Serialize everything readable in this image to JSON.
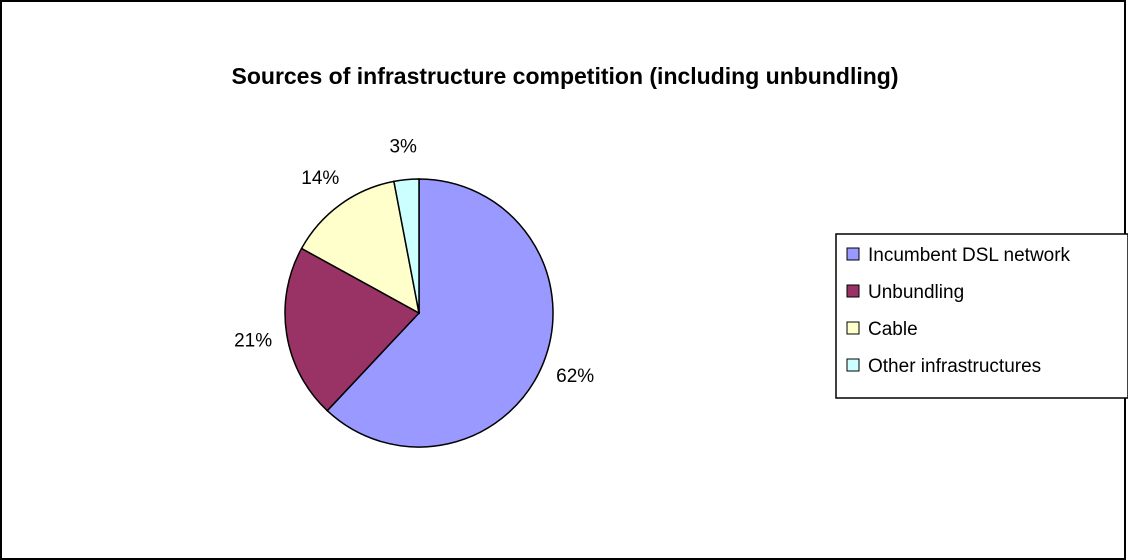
{
  "chart_data": {
    "type": "pie",
    "title": "Sources of infrastructure competition (including unbundling)",
    "categories": [
      "Incumbent DSL network",
      "Unbundling",
      "Cable",
      "Other infrastructures"
    ],
    "values": [
      62,
      21,
      14,
      3
    ],
    "data_labels": [
      "62%",
      "21%",
      "14%",
      "3%"
    ],
    "colors": [
      "#9999FF",
      "#993366",
      "#FFFFCC",
      "#CCFFFF"
    ],
    "legend_position": "right",
    "start_angle": "12 o'clock",
    "direction": "clockwise"
  }
}
